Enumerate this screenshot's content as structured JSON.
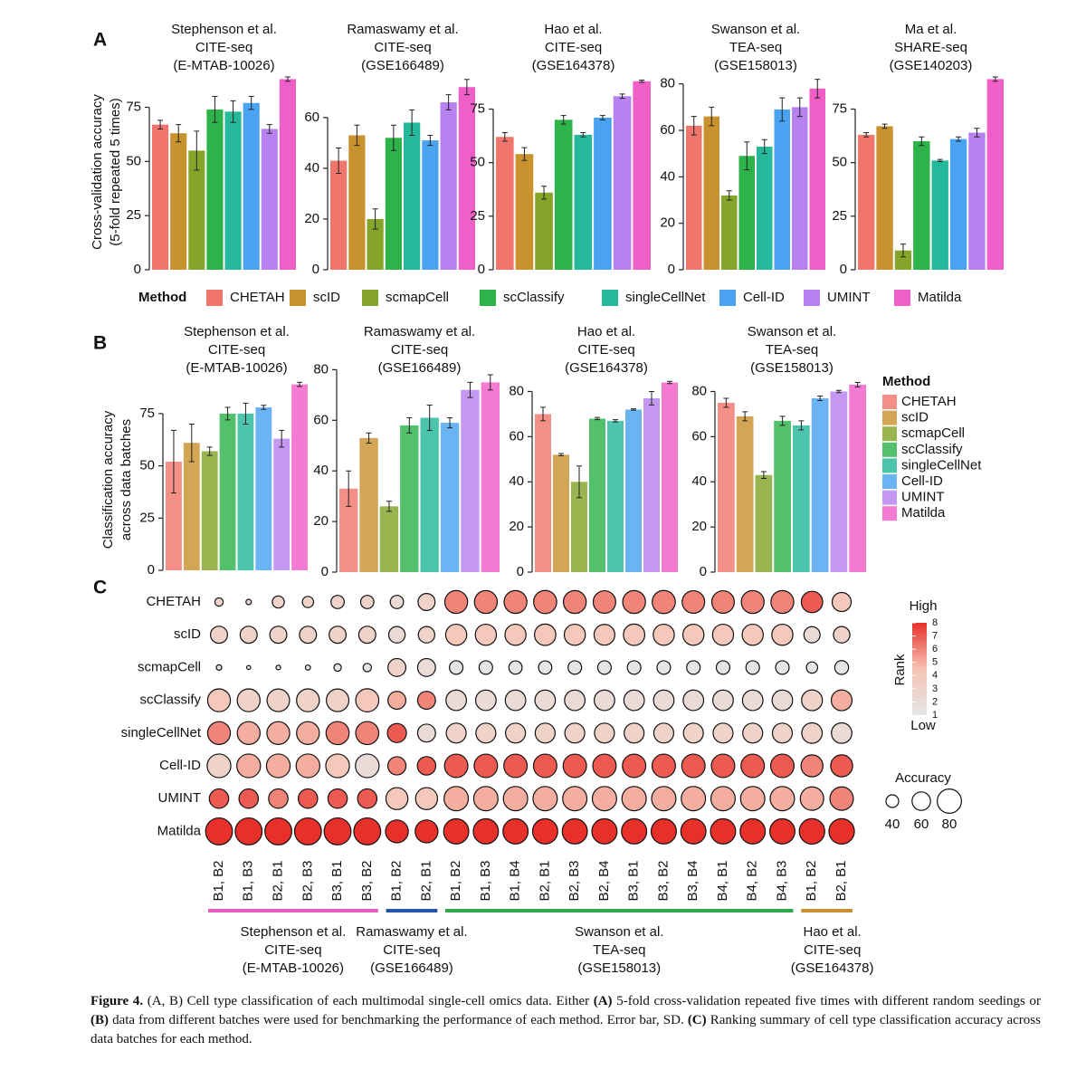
{
  "panel_labels": [
    "A",
    "B",
    "C"
  ],
  "methods": {
    "title": "Method",
    "names": [
      "CHETAH",
      "scID",
      "scmapCell",
      "scClassify",
      "singleCellNet",
      "Cell-ID",
      "UMINT",
      "Matilda"
    ],
    "colors": [
      "#f0766d",
      "#c8932e",
      "#84a42a",
      "#2db34a",
      "#26b89a",
      "#4aa3f0",
      "#b881f0",
      "#f05ec8"
    ]
  },
  "chart_data": [
    {
      "type": "bar_panel",
      "legend_position": "bottom",
      "bar_opacity": 1,
      "ylabel": [
        "Cross-validation accuracy",
        "(5-fold repeated 5 times)"
      ],
      "charts": [
        {
          "title": [
            "Stephenson et al.",
            "CITE-seq",
            "(E-MTAB-10026)"
          ],
          "values": [
            67,
            63,
            55,
            74,
            73,
            77,
            65,
            88
          ],
          "errors": [
            2,
            4,
            9,
            6,
            5,
            3,
            2,
            1
          ],
          "ylim": [
            0,
            89
          ],
          "yticks": [
            0,
            25,
            50,
            75
          ]
        },
        {
          "title": [
            "Ramaswamy et al.",
            "CITE-seq",
            "(GSE166489)"
          ],
          "values": [
            43,
            53,
            20,
            52,
            58,
            51,
            66,
            72
          ],
          "errors": [
            5,
            4,
            4,
            5,
            5,
            2,
            3,
            3
          ],
          "ylim": [
            0,
            76
          ],
          "yticks": [
            0,
            20,
            40,
            60
          ]
        },
        {
          "title": [
            "Hao et al.",
            "CITE-seq",
            "(GSE164378)"
          ],
          "values": [
            62,
            54,
            36,
            70,
            63,
            71,
            81,
            88
          ],
          "errors": [
            2,
            3,
            3,
            2,
            1,
            1,
            1,
            0.5
          ],
          "ylim": [
            0,
            90
          ],
          "yticks": [
            0,
            25,
            50,
            75
          ]
        },
        {
          "title": [
            "Swanson et al.",
            "TEA-seq",
            "(GSE158013)"
          ],
          "values": [
            62,
            66,
            32,
            49,
            53,
            69,
            70,
            78
          ],
          "errors": [
            4,
            4,
            2,
            6,
            3,
            5,
            4,
            4
          ],
          "ylim": [
            0,
            83
          ],
          "yticks": [
            0,
            20,
            40,
            60,
            80
          ]
        },
        {
          "title": [
            "Ma et al.",
            "SHARE-seq",
            "(GSE140203)"
          ],
          "values": [
            63,
            67,
            9,
            60,
            51,
            61,
            64,
            89
          ],
          "errors": [
            1,
            1,
            3,
            2,
            0.5,
            1,
            2,
            1
          ],
          "ylim": [
            0,
            90
          ],
          "yticks": [
            0,
            25,
            50,
            75
          ]
        }
      ]
    },
    {
      "type": "bar_panel",
      "legend_position": "right",
      "bar_opacity": 0.82,
      "ylabel": [
        "Classification accuracy",
        "across data batches"
      ],
      "charts": [
        {
          "title": [
            "Stephenson et al.",
            "CITE-seq",
            "(E-MTAB-10026)"
          ],
          "values": [
            52,
            61,
            57,
            75,
            75,
            78,
            63,
            89
          ],
          "errors": [
            15,
            9,
            2,
            3,
            5,
            1,
            4,
            1
          ],
          "ylim": [
            0,
            91
          ],
          "yticks": [
            0,
            25,
            50,
            75
          ]
        },
        {
          "title": [
            "Ramaswamy et al.",
            "CITE-seq",
            "(GSE166489)"
          ],
          "values": [
            33,
            53,
            26,
            58,
            61,
            59,
            72,
            75
          ],
          "errors": [
            7,
            2,
            2,
            3,
            5,
            2,
            3,
            3
          ],
          "ylim": [
            0,
            83
          ],
          "yticks": [
            0,
            20,
            40,
            60,
            80
          ]
        },
        {
          "title": [
            "Hao et al.",
            "CITE-seq",
            "(GSE164378)"
          ],
          "values": [
            70,
            52,
            40,
            68,
            67,
            72,
            77,
            84
          ],
          "errors": [
            3,
            0.5,
            7,
            0.5,
            0.5,
            0.3,
            3,
            0.5
          ],
          "ylim": [
            0,
            85
          ],
          "yticks": [
            0,
            20,
            40,
            60,
            80
          ]
        },
        {
          "title": [
            "Swanson et al.",
            "TEA-seq",
            "(GSE158013)"
          ],
          "values": [
            75,
            69,
            43,
            67,
            65,
            77,
            80,
            83
          ],
          "errors": [
            2,
            2,
            1.5,
            2,
            2,
            1,
            0.5,
            1
          ],
          "ylim": [
            0,
            85
          ],
          "yticks": [
            0,
            20,
            40,
            60,
            80
          ]
        }
      ]
    },
    {
      "type": "dot_matrix",
      "rows": [
        "CHETAH",
        "scID",
        "scmapCell",
        "scClassify",
        "singleCellNet",
        "Cell-ID",
        "UMINT",
        "Matilda"
      ],
      "groups": [
        {
          "label": [
            "Stephenson et al.",
            "CITE-seq",
            "(E-MTAB-10026)"
          ],
          "color": "#e85fc0",
          "columns": [
            "B1, B2",
            "B1, B3",
            "B2, B1",
            "B2, B3",
            "B3, B1",
            "B3, B2"
          ]
        },
        {
          "label": [
            "Ramaswamy et al.",
            "CITE-seq",
            "(GSE166489)"
          ],
          "color": "#2455a8",
          "columns": [
            "B1, B2",
            "B2, B1"
          ]
        },
        {
          "label": [
            "Swanson et al.",
            "TEA-seq",
            "(GSE158013)"
          ],
          "color": "#2eaa4a",
          "columns": [
            "B1, B2",
            "B1, B3",
            "B1, B4",
            "B2, B1",
            "B2, B3",
            "B2, B4",
            "B3, B1",
            "B3, B2",
            "B3, B4",
            "B4, B1",
            "B4, B2",
            "B4, B3"
          ]
        },
        {
          "label": [
            "Hao et al.",
            "CITE-seq",
            "(GSE164378)"
          ],
          "color": "#c8932e",
          "columns": [
            "B1, B2",
            "B2, B1"
          ]
        }
      ],
      "rank": [
        [
          3,
          2,
          3,
          3,
          3,
          3,
          2,
          3,
          6,
          6,
          6,
          6,
          6,
          6,
          6,
          6,
          6,
          6,
          6,
          6,
          7,
          4
        ],
        [
          3,
          3,
          3,
          3,
          3,
          3,
          2,
          3,
          4,
          4,
          4,
          4,
          4,
          4,
          4,
          4,
          4,
          4,
          4,
          4,
          2,
          3
        ],
        [
          1,
          1,
          1,
          1,
          1,
          1,
          3,
          2,
          1,
          1,
          1,
          1,
          1,
          1,
          1,
          1,
          1,
          1,
          1,
          1,
          1,
          1
        ],
        [
          4,
          3,
          3,
          3,
          3,
          4,
          5,
          6,
          2,
          2,
          2,
          2,
          2,
          2,
          2,
          2,
          2,
          2,
          2,
          2,
          3,
          5
        ],
        [
          6,
          5,
          5,
          5,
          6,
          6,
          7,
          2,
          3,
          3,
          3,
          3,
          3,
          3,
          3,
          3,
          3,
          3,
          3,
          3,
          3,
          2
        ],
        [
          3,
          5,
          5,
          5,
          4,
          2,
          6,
          7,
          7,
          7,
          7,
          7,
          7,
          7,
          7,
          7,
          7,
          7,
          7,
          7,
          6,
          7
        ],
        [
          7,
          7,
          6,
          7,
          7,
          7,
          4,
          4,
          5,
          5,
          5,
          5,
          5,
          5,
          5,
          5,
          5,
          5,
          5,
          5,
          5,
          6
        ],
        [
          8,
          8,
          8,
          8,
          8,
          8,
          8,
          8,
          8,
          8,
          8,
          8,
          8,
          8,
          8,
          8,
          8,
          8,
          8,
          8,
          8,
          8
        ]
      ],
      "accuracy": [
        [
          25,
          15,
          38,
          35,
          42,
          42,
          42,
          55,
          75,
          75,
          75,
          76,
          75,
          74,
          75,
          76,
          74,
          74,
          75,
          75,
          70,
          62
        ],
        [
          55,
          55,
          55,
          55,
          55,
          55,
          53,
          53,
          69,
          69,
          69,
          70,
          69,
          68,
          70,
          69,
          69,
          69,
          69,
          69,
          52,
          53
        ],
        [
          15,
          10,
          12,
          14,
          22,
          25,
          58,
          58,
          43,
          43,
          42,
          42,
          43,
          43,
          43,
          43,
          43,
          43,
          43,
          43,
          35,
          44
        ],
        [
          75,
          75,
          74,
          75,
          74,
          76,
          58,
          58,
          67,
          67,
          67,
          67,
          67,
          67,
          67,
          67,
          67,
          67,
          67,
          67,
          68,
          68
        ],
        [
          75,
          75,
          75,
          75,
          76,
          76,
          62,
          58,
          65,
          65,
          65,
          65,
          65,
          65,
          65,
          65,
          65,
          65,
          65,
          65,
          67,
          67
        ],
        [
          78,
          78,
          78,
          78,
          78,
          78,
          59,
          60,
          77,
          77,
          77,
          77,
          77,
          77,
          77,
          77,
          77,
          77,
          77,
          77,
          72,
          72
        ],
        [
          63,
          63,
          63,
          63,
          63,
          63,
          72,
          72,
          80,
          80,
          80,
          80,
          80,
          80,
          80,
          80,
          80,
          80,
          80,
          80,
          77,
          77
        ],
        [
          89,
          89,
          89,
          89,
          89,
          89,
          75,
          75,
          83,
          83,
          83,
          83,
          83,
          83,
          83,
          83,
          83,
          83,
          83,
          83,
          84,
          84
        ]
      ],
      "rank_legend": {
        "title": "Rank",
        "high": "High",
        "low": "Low",
        "ticks": [
          1,
          2,
          3,
          4,
          5,
          6,
          7,
          8
        ],
        "colors": [
          "#e5e5e5",
          "#f6c3b3",
          "#e8302a"
        ]
      },
      "size_legend": {
        "title": "Accuracy",
        "values": [
          40,
          60,
          80
        ]
      }
    }
  ],
  "caption": [
    {
      "text": "Figure 4.",
      "bold": true
    },
    {
      "text": " (A, B) Cell type classification of each multimodal single-cell omics data. Either ",
      "bold": false
    },
    {
      "text": "(A)",
      "bold": true
    },
    {
      "text": " 5-fold cross-validation repeated five times with different random seedings or ",
      "bold": false
    },
    {
      "text": "(B)",
      "bold": true
    },
    {
      "text": " data from different batches were used for benchmarking the performance of each method. Error bar, SD. ",
      "bold": false
    },
    {
      "text": "(C)",
      "bold": true
    },
    {
      "text": " Ranking summary of cell type classification accuracy across data batches for each method.",
      "bold": false
    }
  ]
}
